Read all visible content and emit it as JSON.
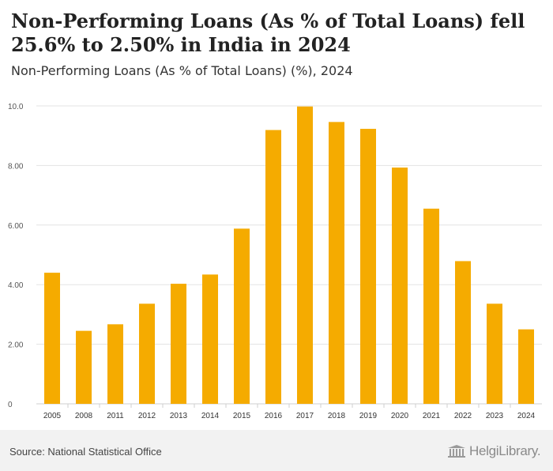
{
  "header": {
    "title": "Non-Performing Loans (As % of Total Loans) fell 25.6% to 2.50% in India in 2024",
    "subtitle": "Non-Performing Loans (As % of Total Loans) (%), 2024"
  },
  "footer": {
    "source": "Source: National Statistical Office",
    "brand": "HelgiLibrary.",
    "brand_icon": "library-building-icon"
  },
  "colors": {
    "bar": "#f5ab00",
    "grid": "#e3e3e3",
    "axis_text": "#555555"
  },
  "chart_data": {
    "type": "bar",
    "categories": [
      "2005",
      "2008",
      "2011",
      "2012",
      "2013",
      "2014",
      "2015",
      "2016",
      "2017",
      "2018",
      "2019",
      "2020",
      "2021",
      "2022",
      "2023",
      "2024"
    ],
    "values": [
      4.4,
      2.45,
      2.67,
      3.36,
      4.03,
      4.34,
      5.88,
      9.19,
      9.98,
      9.46,
      9.23,
      7.93,
      6.55,
      4.79,
      3.36,
      2.5
    ],
    "yticks": [
      "0",
      "2.00",
      "4.00",
      "6.00",
      "8.00",
      "10.0"
    ],
    "ylim": [
      0,
      10
    ],
    "xlabel": "",
    "ylabel": "",
    "grid": true,
    "legend": "none"
  }
}
